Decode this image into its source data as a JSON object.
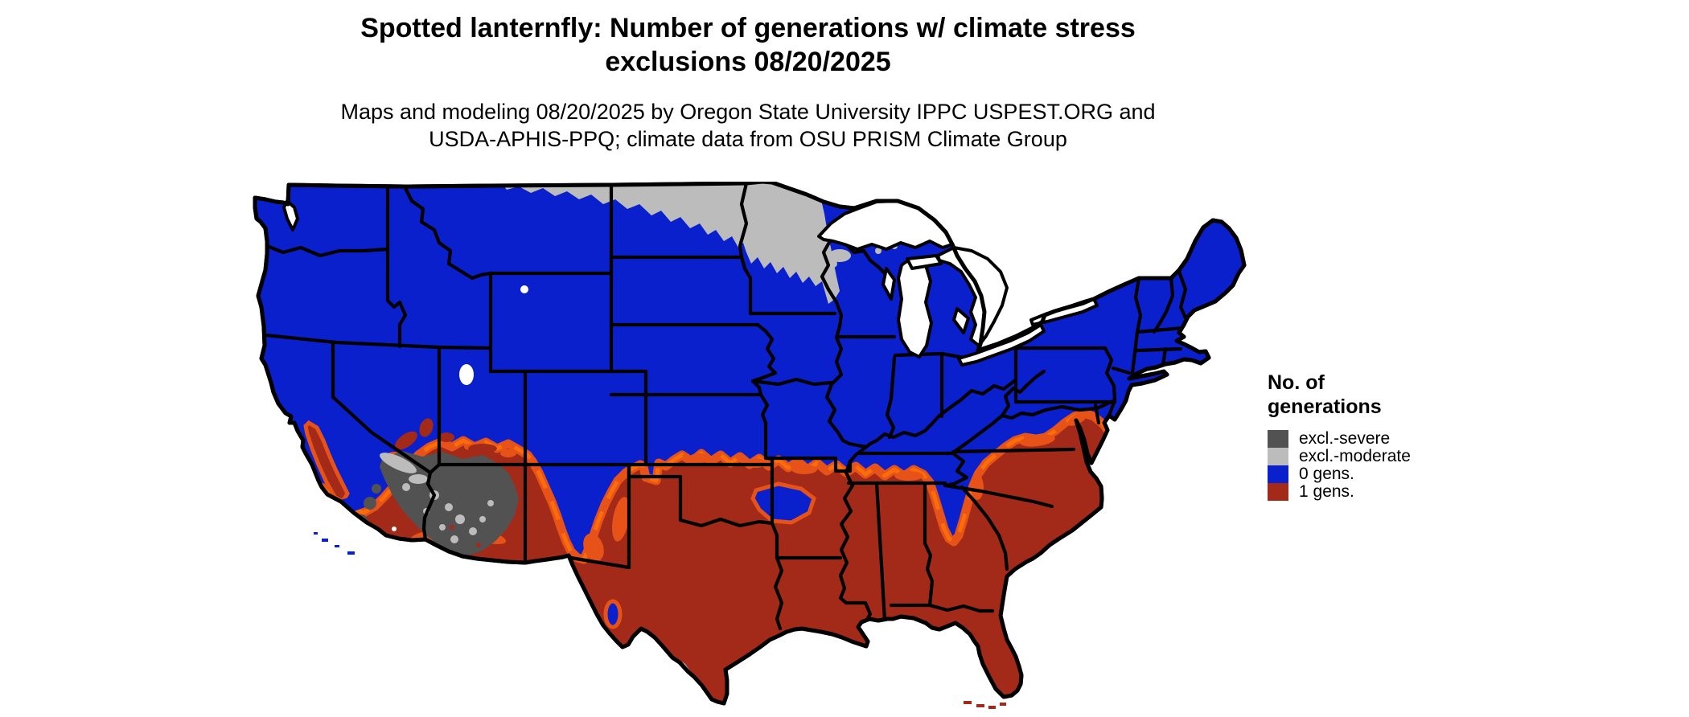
{
  "title": {
    "line1": "Spotted lanternfly: Number of generations w/ climate stress",
    "line2": "exclusions 08/20/2025"
  },
  "subtitle": {
    "line1": "Maps and modeling 08/20/2025 by Oregon State University IPPC USPEST.ORG and",
    "line2": "USDA-APHIS-PPQ; climate data from OSU PRISM Climate Group"
  },
  "legend": {
    "title_line1": "No. of",
    "title_line2": "generations",
    "items": [
      {
        "id": "excl-severe",
        "label": "excl.-severe",
        "color": "#525252"
      },
      {
        "id": "excl-moderate",
        "label": "excl.-moderate",
        "color": "#bcbcbc"
      },
      {
        "id": "0-gens",
        "label": "0 gens.",
        "color": "#0a20cd"
      },
      {
        "id": "1-gens",
        "label": "1 gens.",
        "color": "#a32a18"
      }
    ]
  },
  "map": {
    "colors": {
      "zero_generations": "#0a20cd",
      "one_generation": "#a32a18",
      "transition": "#e65217",
      "transition_bright": "#fb6c0b",
      "exclusion_moderate": "#bcbcbc",
      "exclusion_severe": "#525252",
      "state_border": "#000000"
    }
  }
}
